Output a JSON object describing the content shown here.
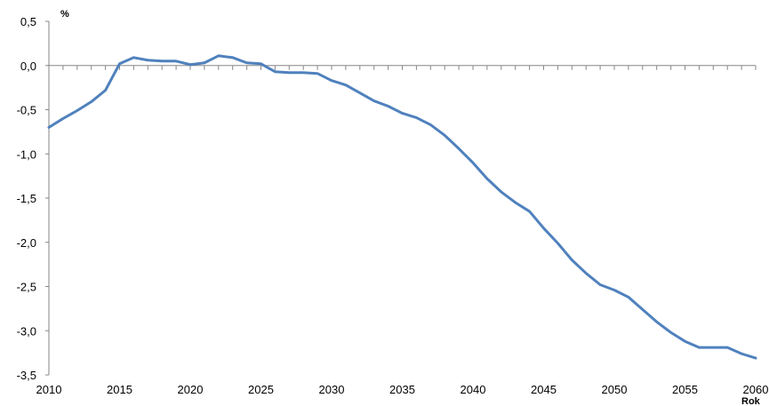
{
  "chart_data": {
    "type": "line",
    "title": "",
    "xlabel": "Rok",
    "ylabel": "%",
    "xlim": [
      2010,
      2060
    ],
    "ylim": [
      -3.5,
      0.5
    ],
    "grid": false,
    "x_ticks": [
      2010,
      2015,
      2020,
      2025,
      2030,
      2035,
      2040,
      2045,
      2050,
      2055,
      2060
    ],
    "x_tick_labels": [
      "2010",
      "2015",
      "2020",
      "2025",
      "2030",
      "2035",
      "2040",
      "2045",
      "2050",
      "2055",
      "2060"
    ],
    "y_ticks": [
      0.5,
      0.0,
      -0.5,
      -1.0,
      -1.5,
      -2.0,
      -2.5,
      -3.0,
      -3.5
    ],
    "y_tick_labels": [
      "0,5",
      "0,0",
      "-0,5",
      "-1,0",
      "-1,5",
      "-2,0",
      "-2,5",
      "-3,0",
      "-3,5"
    ],
    "series": [
      {
        "color": "#4F81BD",
        "x": [
          2010,
          2011,
          2012,
          2013,
          2014,
          2015,
          2016,
          2017,
          2018,
          2019,
          2020,
          2021,
          2022,
          2023,
          2024,
          2025,
          2026,
          2027,
          2028,
          2029,
          2030,
          2031,
          2032,
          2033,
          2034,
          2035,
          2036,
          2037,
          2038,
          2039,
          2040,
          2041,
          2042,
          2043,
          2044,
          2045,
          2046,
          2047,
          2048,
          2049,
          2050,
          2051,
          2052,
          2053,
          2054,
          2055,
          2056,
          2057,
          2058,
          2059,
          2060
        ],
        "values": [
          -0.7,
          -0.6,
          -0.51,
          -0.41,
          -0.28,
          0.02,
          0.09,
          0.06,
          0.05,
          0.05,
          0.01,
          0.03,
          0.11,
          0.09,
          0.03,
          0.02,
          -0.07,
          -0.08,
          -0.08,
          -0.09,
          -0.17,
          -0.22,
          -0.31,
          -0.4,
          -0.46,
          -0.54,
          -0.59,
          -0.67,
          -0.79,
          -0.94,
          -1.1,
          -1.28,
          -1.43,
          -1.55,
          -1.65,
          -1.84,
          -2.01,
          -2.2,
          -2.35,
          -2.48,
          -2.54,
          -2.62,
          -2.76,
          -2.9,
          -3.02,
          -3.12,
          -3.19,
          -3.19,
          -3.19,
          -3.26,
          -3.31
        ]
      }
    ]
  }
}
